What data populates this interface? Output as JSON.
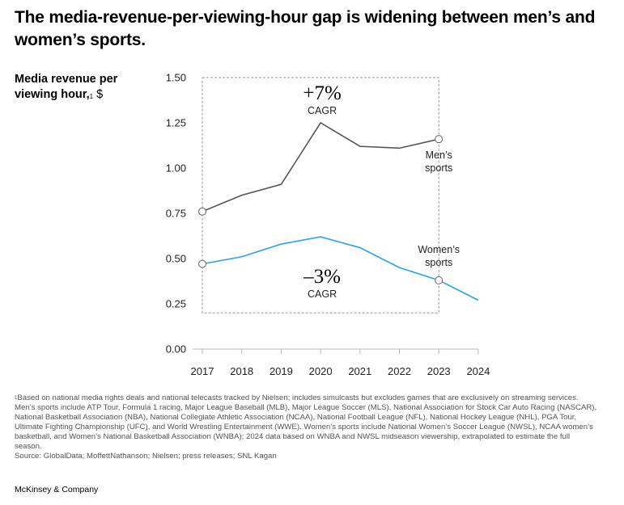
{
  "title": "The media-revenue-per-viewing-hour gap is widening between men’s and women’s sports.",
  "y_axis_title": {
    "text": "Media revenue per viewing hour,",
    "footnote_mark": "1",
    "unit": "$"
  },
  "footnote": {
    "mark": "1",
    "text": "Based on national media rights deals and national telecasts tracked by Nielsen; includes simulcasts but excludes games that are exclusively on streaming services. Men’s sports include ATP Tour, Formula 1 racing, Major League Baseball (MLB), Major League Soccer (MLS), National Association for Stock Car Auto Racing (NASCAR), National Basketball Association (NBA), National Collegiate Athletic Association (NCAA), National Football League (NFL), National Hockey League (NHL), PGA Tour, Ultimate Fighting Championship (UFC), and World Wrestling Entertainment (WWE). Women’s sports include National Women’s Soccer League (NWSL), NCAA women’s basketball, and Women’s National Basketball Association (WNBA); 2024 data based on WNBA and NWSL midseason viewership, extrapolated to estimate the full season."
  },
  "source": "Source: GlobalData; MoffettNathanson; Nielsen; press releases; SNL Kagan",
  "brand": "McKinsey & Company",
  "colors": {
    "mens": "#555555",
    "womens": "#2ba3e8",
    "axis": "#bbbbbb",
    "box": "#999999"
  },
  "chart_data": {
    "type": "line",
    "x": [
      "2017",
      "2018",
      "2019",
      "2020",
      "2021",
      "2022",
      "2023",
      "2024"
    ],
    "ylim": [
      0,
      1.5
    ],
    "y_ticks": [
      "0.00",
      "0.25",
      "0.50",
      "0.75",
      "1.00",
      "1.25",
      "1.50"
    ],
    "series": [
      {
        "key": "mens",
        "name": "Men’s sports",
        "label_lines": [
          "Men’s",
          "sports"
        ],
        "values": [
          0.76,
          0.85,
          0.91,
          1.25,
          1.12,
          1.11,
          1.16,
          null
        ]
      },
      {
        "key": "womens",
        "name": "Women’s sports",
        "label_lines": [
          "Women’s",
          "sports"
        ],
        "values": [
          0.47,
          0.51,
          0.58,
          0.62,
          0.56,
          0.45,
          0.38,
          0.27
        ]
      }
    ],
    "annotations": [
      {
        "value": "+7%",
        "label": "CAGR",
        "series": "mens"
      },
      {
        "value": "–3%",
        "label": "CAGR",
        "series": "womens"
      }
    ],
    "highlight_range": [
      "2017",
      "2023"
    ],
    "grid": false
  }
}
